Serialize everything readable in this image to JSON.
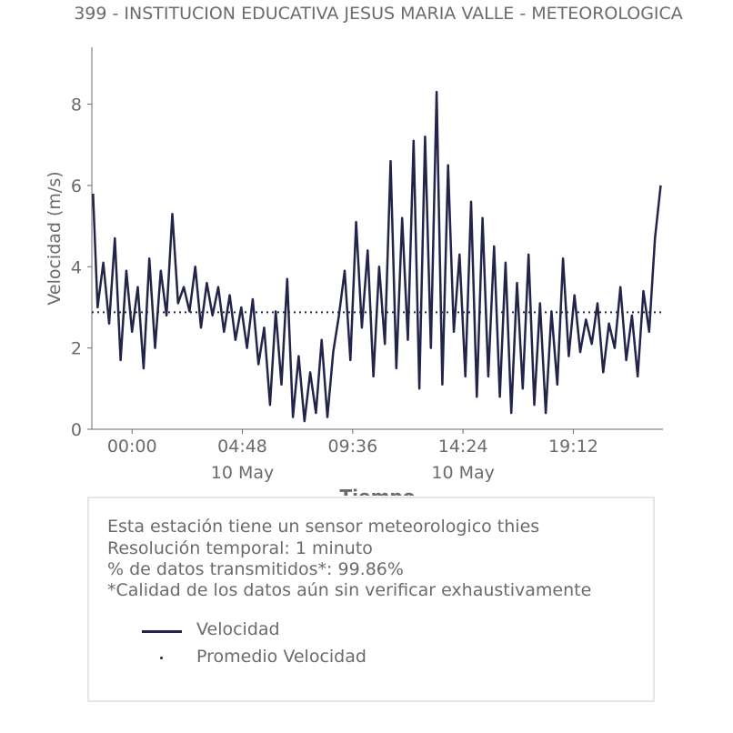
{
  "chart_data": {
    "type": "line",
    "title": "399 - INSTITUCION EDUCATIVA JESUS MARIA VALLE - METEOROLOGICA",
    "xlabel": "Tiempo",
    "ylabel": "Velocidad (m/s)",
    "ylim": [
      0,
      9.4
    ],
    "xlim": [
      -1.75,
      23.1
    ],
    "x_unit": "hours from 00:00 10 May",
    "x_ticks": [
      {
        "pos": 0,
        "label": "00:00",
        "sublabel": ""
      },
      {
        "pos": 4.8,
        "label": "04:48",
        "sublabel": "10 May"
      },
      {
        "pos": 9.6,
        "label": "09:36",
        "sublabel": ""
      },
      {
        "pos": 14.4,
        "label": "14:24",
        "sublabel": "10 May"
      },
      {
        "pos": 19.2,
        "label": "19:12",
        "sublabel": ""
      }
    ],
    "y_ticks": [
      0,
      2,
      4,
      6,
      8
    ],
    "grid": false,
    "series": [
      {
        "name": "Velocidad",
        "color": "#22244a",
        "style": "solid",
        "x": [
          -1.7,
          -1.5,
          -1.25,
          -1.0,
          -0.75,
          -0.5,
          -0.25,
          0.0,
          0.25,
          0.5,
          0.75,
          1.0,
          1.25,
          1.5,
          1.75,
          2.0,
          2.25,
          2.5,
          2.75,
          3.0,
          3.25,
          3.5,
          3.75,
          4.0,
          4.25,
          4.5,
          4.75,
          5.0,
          5.25,
          5.5,
          5.75,
          6.0,
          6.25,
          6.5,
          6.75,
          7.0,
          7.25,
          7.5,
          7.75,
          8.0,
          8.25,
          8.5,
          8.75,
          9.0,
          9.25,
          9.5,
          9.75,
          10.0,
          10.25,
          10.5,
          10.75,
          11.0,
          11.25,
          11.5,
          11.75,
          12.0,
          12.25,
          12.5,
          12.75,
          13.0,
          13.25,
          13.5,
          13.75,
          14.0,
          14.25,
          14.5,
          14.75,
          15.0,
          15.25,
          15.5,
          15.75,
          16.0,
          16.25,
          16.5,
          16.75,
          17.0,
          17.25,
          17.5,
          17.75,
          18.0,
          18.25,
          18.5,
          18.75,
          19.0,
          19.25,
          19.5,
          19.75,
          20.0,
          20.25,
          20.5,
          20.75,
          21.0,
          21.25,
          21.5,
          21.75,
          22.0,
          22.25,
          22.5,
          22.75,
          23.0
        ],
        "values": [
          5.8,
          3.0,
          4.1,
          2.6,
          4.7,
          1.7,
          3.9,
          2.4,
          3.5,
          1.5,
          4.2,
          2.0,
          3.9,
          2.8,
          5.3,
          3.1,
          3.5,
          2.9,
          4.0,
          2.5,
          3.6,
          2.8,
          3.5,
          2.4,
          3.3,
          2.2,
          3.0,
          2.0,
          3.2,
          1.6,
          2.5,
          0.6,
          2.9,
          1.1,
          3.7,
          0.3,
          1.8,
          0.2,
          1.4,
          0.4,
          2.2,
          0.3,
          1.9,
          2.8,
          3.9,
          1.7,
          5.1,
          2.5,
          4.4,
          1.3,
          4.0,
          2.1,
          6.6,
          1.5,
          5.2,
          2.2,
          7.1,
          1.0,
          7.2,
          2.0,
          8.3,
          1.1,
          6.5,
          2.4,
          4.3,
          1.3,
          5.6,
          0.8,
          5.2,
          1.3,
          4.5,
          0.8,
          4.1,
          0.4,
          3.6,
          1.0,
          4.3,
          0.6,
          3.1,
          0.4,
          2.9,
          1.1,
          4.2,
          1.8,
          3.3,
          1.9,
          2.7,
          2.1,
          3.1,
          1.4,
          2.6,
          2.0,
          3.5,
          1.7,
          2.8,
          1.3,
          3.4,
          2.4,
          4.7,
          6.0
        ]
      },
      {
        "name": "Promedio Velocidad",
        "color": "#22244a",
        "style": "dotted",
        "constant": 2.88
      }
    ]
  },
  "info_box": {
    "lines": [
      "Esta estación tiene un sensor meteorologico thies",
      "Resolución temporal: 1 minuto",
      "% de datos transmitidos*: 99.86%",
      "*Calidad de los datos aún sin verificar exhaustivamente"
    ],
    "legend": [
      {
        "label": "Velocidad",
        "kind": "line"
      },
      {
        "label": "Promedio Velocidad",
        "kind": "dot"
      }
    ]
  }
}
